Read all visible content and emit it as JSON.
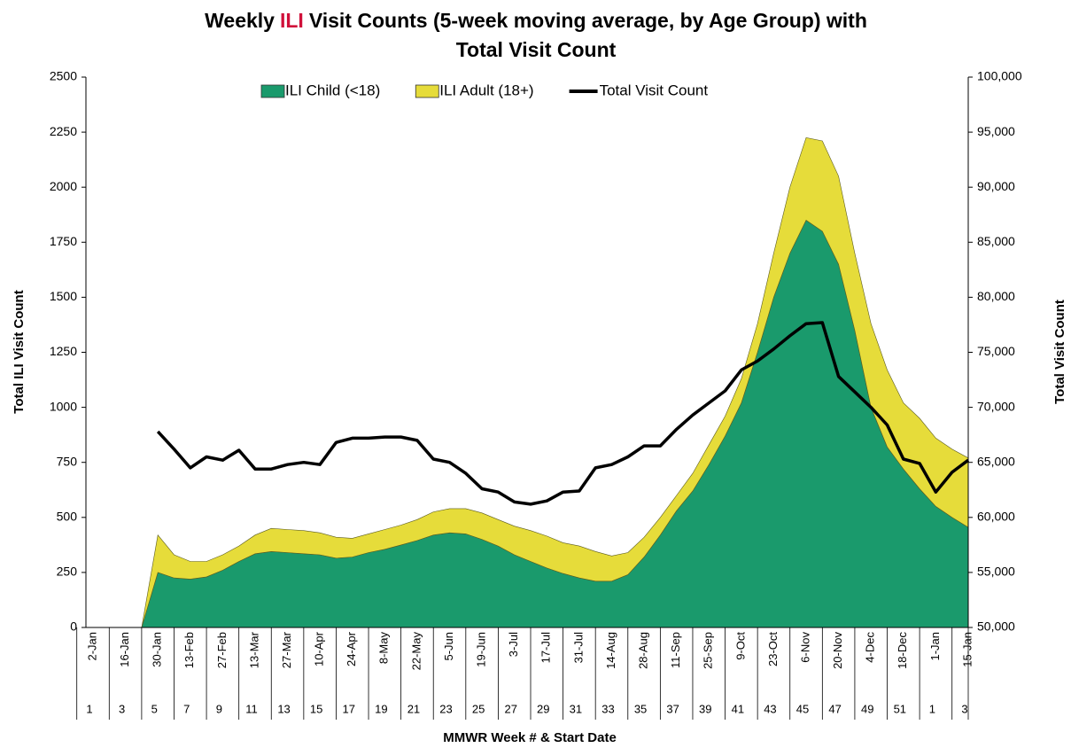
{
  "chart_data": {
    "type": "stacked_area_line",
    "title": {
      "prefix": "Weekly",
      "highlight": "ILI",
      "rest": "Visit Counts (5-week moving average, by Age Group) with",
      "line2": "Total Visit Count"
    },
    "highlight_color": "#d0103a",
    "x_label": "MMWR Week # & Start Date",
    "y_label": "Total ILI Visit Count",
    "y2_label": "Total Visit Count",
    "categories": [
      "2-Jan",
      null,
      "16-Jan",
      null,
      "30-Jan",
      null,
      "13-Feb",
      null,
      "27-Feb",
      null,
      "13-Mar",
      null,
      "27-Mar",
      null,
      "10-Apr",
      null,
      "24-Apr",
      null,
      "8-May",
      null,
      "22-May",
      null,
      "5-Jun",
      null,
      "19-Jun",
      null,
      "3-Jul",
      null,
      "17-Jul",
      null,
      "31-Jul",
      null,
      "14-Aug",
      null,
      "28-Aug",
      null,
      "11-Sep",
      null,
      "25-Sep",
      null,
      "9-Oct",
      null,
      "23-Oct",
      null,
      "6-Nov",
      null,
      "20-Nov",
      null,
      "4-Dec",
      null,
      "18-Dec",
      null,
      "1-Jan",
      null,
      "15-Jan"
    ],
    "week_numbers": [
      1,
      null,
      3,
      null,
      5,
      null,
      7,
      null,
      9,
      null,
      11,
      null,
      13,
      null,
      15,
      null,
      17,
      null,
      19,
      null,
      21,
      null,
      23,
      null,
      25,
      null,
      27,
      null,
      29,
      null,
      31,
      null,
      33,
      null,
      35,
      null,
      37,
      null,
      39,
      null,
      41,
      null,
      43,
      null,
      45,
      null,
      47,
      null,
      49,
      null,
      51,
      null,
      1,
      null,
      3
    ],
    "series": [
      {
        "name": "ILI Child (<18)",
        "color": "#1a9a6c",
        "values": [
          0,
          0,
          0,
          0,
          250,
          225,
          220,
          230,
          260,
          300,
          335,
          345,
          340,
          335,
          330,
          315,
          320,
          340,
          355,
          375,
          395,
          420,
          430,
          425,
          400,
          370,
          330,
          300,
          270,
          245,
          225,
          210,
          210,
          240,
          320,
          420,
          530,
          620,
          740,
          870,
          1020,
          1250,
          1500,
          1700,
          1850,
          1800,
          1650,
          1350,
          1000,
          820,
          720,
          630,
          550,
          500,
          455
        ]
      },
      {
        "name": "ILI Adult (18+)",
        "color": "#e6dc3a",
        "values": [
          0,
          0,
          0,
          0,
          170,
          105,
          80,
          70,
          70,
          70,
          85,
          105,
          105,
          105,
          100,
          95,
          85,
          85,
          90,
          90,
          95,
          105,
          110,
          115,
          120,
          120,
          130,
          140,
          145,
          140,
          145,
          135,
          115,
          100,
          90,
          80,
          70,
          80,
          90,
          90,
          110,
          130,
          200,
          300,
          375,
          410,
          400,
          350,
          380,
          350,
          300,
          320,
          310,
          310,
          315
        ]
      },
      {
        "name": "Total Visit Count",
        "color": "#000000",
        "axis": "y2",
        "values": [
          null,
          null,
          null,
          null,
          67800,
          66200,
          64500,
          65500,
          65200,
          66100,
          64400,
          64400,
          64800,
          65000,
          64800,
          66800,
          67200,
          67200,
          67300,
          67300,
          67000,
          65300,
          65000,
          64000,
          62600,
          62300,
          61400,
          61200,
          61500,
          62300,
          62400,
          64500,
          64800,
          65500,
          66500,
          66500,
          68000,
          69300,
          70400,
          71500,
          73400,
          74200,
          75300,
          76500,
          77600,
          77700,
          72800,
          71400,
          70000,
          68400,
          65300,
          64900,
          62300,
          64100,
          65200
        ]
      }
    ],
    "ylim": [
      0,
      2500
    ],
    "yticks": [
      0,
      250,
      500,
      750,
      1000,
      1250,
      1500,
      1750,
      2000,
      2250,
      2500
    ],
    "y2lim": [
      50000,
      100000
    ],
    "y2ticks": [
      {
        "value": 50000,
        "label": "50,000"
      },
      {
        "value": 55000,
        "label": "55,000"
      },
      {
        "value": 60000,
        "label": "60,000"
      },
      {
        "value": 65000,
        "label": "65,000"
      },
      {
        "value": 70000,
        "label": "70,000"
      },
      {
        "value": 75000,
        "label": "75,000"
      },
      {
        "value": 80000,
        "label": "80,000"
      },
      {
        "value": 85000,
        "label": "85,000"
      },
      {
        "value": 90000,
        "label": "90,000"
      },
      {
        "value": 95000,
        "label": "95,000"
      },
      {
        "value": 100000,
        "label": "100,000"
      }
    ],
    "grid": false
  }
}
